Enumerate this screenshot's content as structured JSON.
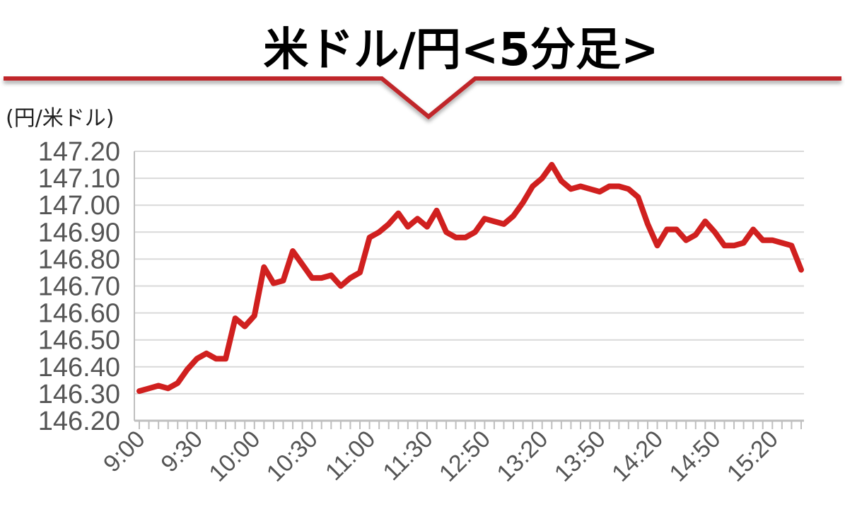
{
  "chart_data": {
    "type": "line",
    "title": "米ドル/円<5分足>",
    "ylabel": "(円/米ドル)",
    "xlabel": "",
    "ylim": [
      146.2,
      147.2
    ],
    "y_ticks": [
      "146.20",
      "146.30",
      "146.40",
      "146.50",
      "146.60",
      "146.70",
      "146.80",
      "146.90",
      "147.00",
      "147.10",
      "147.20"
    ],
    "x_tick_labels": [
      "9:00",
      "9:30",
      "10:00",
      "10:30",
      "11:00",
      "11:30",
      "12:50",
      "13:20",
      "13:50",
      "14:20",
      "14:50",
      "15:20"
    ],
    "grid": true,
    "legend": "none",
    "colors": {
      "line": "#d0201f",
      "accent": "#c0282a",
      "grid": "#d9d9d9",
      "axis": "#bfbfbf",
      "tick_text": "#555555"
    },
    "series": [
      {
        "values": [
          146.31,
          146.32,
          146.33,
          146.32,
          146.34,
          146.39,
          146.43,
          146.45,
          146.43,
          146.43,
          146.58,
          146.55,
          146.59,
          146.77,
          146.71,
          146.72,
          146.83,
          146.78,
          146.73,
          146.73,
          146.74,
          146.7,
          146.73,
          146.75,
          146.88,
          146.9,
          146.93,
          146.97,
          146.92,
          146.95,
          146.92,
          146.98,
          146.9,
          146.88,
          146.88,
          146.9,
          146.95,
          146.94,
          146.93,
          146.96,
          147.01,
          147.07,
          147.1,
          147.15,
          147.09,
          147.06,
          147.07,
          147.06,
          147.05,
          147.07,
          147.07,
          147.06,
          147.03,
          146.93,
          146.85,
          146.91,
          146.91,
          146.87,
          146.89,
          146.94,
          146.9,
          146.85,
          146.85,
          146.86,
          146.91,
          146.87,
          146.87,
          146.86,
          146.85,
          146.76
        ]
      }
    ]
  }
}
